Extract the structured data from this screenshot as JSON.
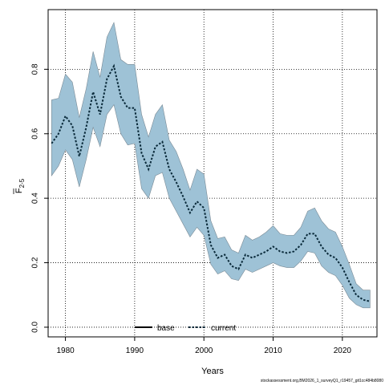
{
  "chart_data": {
    "type": "line",
    "title": "",
    "xlabel": "Years",
    "ylabel": "F̄2-5",
    "ylabel_main": "F",
    "ylabel_sub": "2-5",
    "xlim": [
      1977.5,
      2025
    ],
    "ylim": [
      -0.03,
      0.985
    ],
    "x_ticks": [
      1980,
      1990,
      2000,
      2010,
      2020
    ],
    "x_tick_labels": [
      "1980",
      "1990",
      "2000",
      "2010",
      "2020"
    ],
    "y_ticks": [
      0.0,
      0.2,
      0.4,
      0.6,
      0.8
    ],
    "y_tick_labels": [
      "0.0",
      "0.2",
      "0.4",
      "0.6",
      "0.8"
    ],
    "grid": true,
    "legend_position": "bottom-center",
    "band_color": "#9ec2d6",
    "line_color": "#000000",
    "series": [
      {
        "name": "base",
        "style": "solid",
        "x": [],
        "y": []
      },
      {
        "name": "current",
        "style": "dotted",
        "x": [
          1978,
          1979,
          1980,
          1981,
          1982,
          1983,
          1984,
          1985,
          1986,
          1987,
          1988,
          1989,
          1990,
          1991,
          1992,
          1993,
          1994,
          1995,
          1996,
          1997,
          1998,
          1999,
          2000,
          2001,
          2002,
          2003,
          2004,
          2005,
          2006,
          2007,
          2008,
          2009,
          2010,
          2011,
          2012,
          2013,
          2014,
          2015,
          2016,
          2017,
          2018,
          2019,
          2020,
          2021,
          2022,
          2023,
          2024
        ],
        "y": [
          0.57,
          0.6,
          0.655,
          0.625,
          0.53,
          0.62,
          0.73,
          0.66,
          0.77,
          0.81,
          0.715,
          0.68,
          0.68,
          0.54,
          0.49,
          0.56,
          0.575,
          0.49,
          0.45,
          0.405,
          0.355,
          0.39,
          0.37,
          0.255,
          0.215,
          0.225,
          0.19,
          0.18,
          0.225,
          0.215,
          0.225,
          0.235,
          0.25,
          0.235,
          0.23,
          0.235,
          0.255,
          0.29,
          0.29,
          0.25,
          0.225,
          0.215,
          0.185,
          0.14,
          0.1,
          0.085,
          0.08
        ]
      }
    ],
    "band": {
      "name": "confidence interval",
      "x": [
        1978,
        1979,
        1980,
        1981,
        1982,
        1983,
        1984,
        1985,
        1986,
        1987,
        1988,
        1989,
        1990,
        1991,
        1992,
        1993,
        1994,
        1995,
        1996,
        1997,
        1998,
        1999,
        2000,
        2001,
        2002,
        2003,
        2004,
        2005,
        2006,
        2007,
        2008,
        2009,
        2010,
        2011,
        2012,
        2013,
        2014,
        2015,
        2016,
        2017,
        2018,
        2019,
        2020,
        2021,
        2022,
        2023,
        2024
      ],
      "lower": [
        0.47,
        0.5,
        0.55,
        0.52,
        0.435,
        0.52,
        0.62,
        0.56,
        0.66,
        0.69,
        0.6,
        0.565,
        0.57,
        0.43,
        0.4,
        0.47,
        0.48,
        0.4,
        0.36,
        0.32,
        0.28,
        0.31,
        0.285,
        0.195,
        0.165,
        0.175,
        0.15,
        0.145,
        0.18,
        0.17,
        0.18,
        0.19,
        0.2,
        0.19,
        0.185,
        0.185,
        0.205,
        0.235,
        0.23,
        0.19,
        0.17,
        0.16,
        0.13,
        0.09,
        0.07,
        0.06,
        0.06
      ],
      "upper": [
        0.705,
        0.71,
        0.785,
        0.76,
        0.65,
        0.74,
        0.855,
        0.775,
        0.9,
        0.945,
        0.83,
        0.815,
        0.815,
        0.66,
        0.59,
        0.66,
        0.69,
        0.58,
        0.545,
        0.49,
        0.425,
        0.49,
        0.475,
        0.33,
        0.275,
        0.28,
        0.24,
        0.23,
        0.285,
        0.27,
        0.28,
        0.295,
        0.315,
        0.29,
        0.285,
        0.285,
        0.31,
        0.36,
        0.37,
        0.33,
        0.305,
        0.295,
        0.25,
        0.195,
        0.135,
        0.115,
        0.115
      ]
    }
  },
  "footer_text": "stockassessment.org,BM2026_1_surveyQ1_r19457_git1cc484b8080"
}
